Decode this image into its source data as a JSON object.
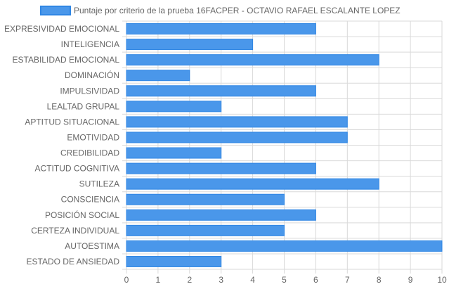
{
  "colors": {
    "bar_fill": "#4a97ea",
    "bar_stroke": "#2f86e4",
    "grid": "#d9d9d9",
    "text": "#666666"
  },
  "chart_data": {
    "type": "bar",
    "orientation": "horizontal",
    "legend": {
      "position": "top",
      "label": "Puntaje por criterio de la prueba 16FACPER - OCTAVIO RAFAEL ESCALANTE LOPEZ"
    },
    "categories": [
      "EXPRESIVIDAD EMOCIONAL",
      "INTELIGENCIA",
      "ESTABILIDAD EMOCIONAL",
      "DOMINACIÓN",
      "IMPULSIVIDAD",
      "LEALTAD GRUPAL",
      "APTITUD SITUACIONAL",
      "EMOTIVIDAD",
      "CREDIBILIDAD",
      "ACTITUD COGNITIVA",
      "SUTILEZA",
      "CONSCIENCIA",
      "POSICIÓN SOCIAL",
      "CERTEZA INDIVIDUAL",
      "AUTOESTIMA",
      "ESTADO DE ANSIEDAD"
    ],
    "series": [
      {
        "name": "Puntaje por criterio de la prueba 16FACPER - OCTAVIO RAFAEL ESCALANTE LOPEZ",
        "values": [
          6,
          4,
          8,
          2,
          6,
          3,
          7,
          7,
          3,
          6,
          8,
          5,
          6,
          5,
          10,
          3
        ]
      }
    ],
    "xlim": [
      0,
      10
    ],
    "xticks": [
      "0",
      "1",
      "2",
      "3",
      "4",
      "5",
      "6",
      "7",
      "8",
      "9",
      "10"
    ],
    "grid": true
  }
}
